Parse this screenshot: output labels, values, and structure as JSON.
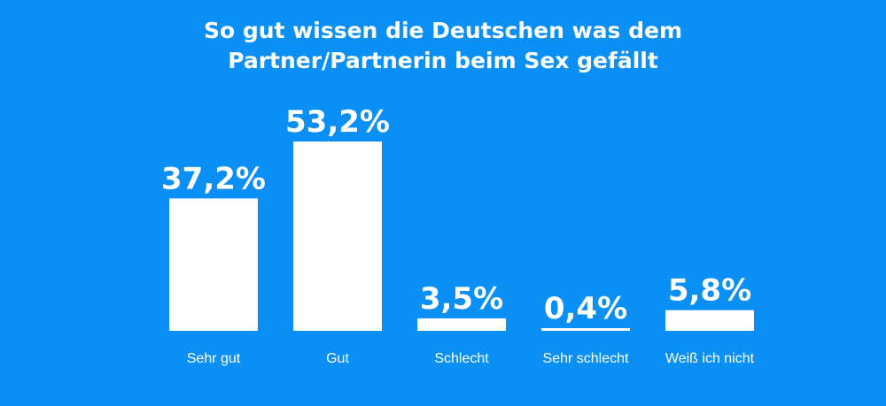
{
  "chart_data": {
    "type": "bar",
    "title_line1": "So gut wissen die Deutschen was dem",
    "title_line2": "Partner/Partnerin beim Sex gefällt",
    "categories": [
      "Sehr gut",
      "Gut",
      "Schlecht",
      "Sehr schlecht",
      "Weiß ich nicht"
    ],
    "values": [
      37.2,
      53.2,
      3.5,
      0.4,
      5.8
    ],
    "value_labels": [
      "37,2%",
      "53,2%",
      "3,5%",
      "0,4%",
      "5,8%"
    ],
    "grid": false,
    "legend": "none",
    "colors": {
      "background": "#0a90f5",
      "bar": "#ffffff",
      "text": "#ffffff"
    }
  }
}
